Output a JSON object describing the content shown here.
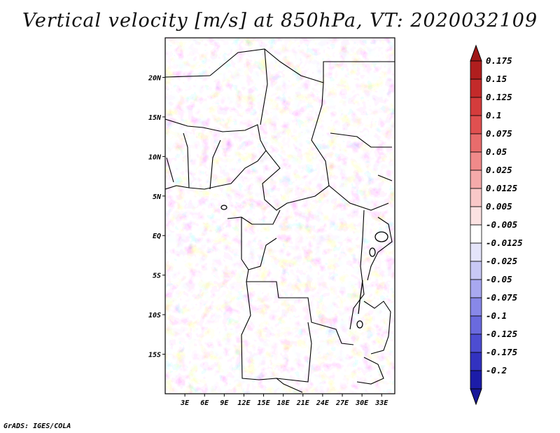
{
  "title": "Vertical velocity [m/s] at 850hPa, VT: 2020032109",
  "footer": "GrADS: IGES/COLA",
  "map": {
    "lon_range": [
      0,
      35
    ],
    "lat_range": [
      -20,
      25
    ],
    "lat_ticks": [
      {
        "value": 20,
        "label": "20N"
      },
      {
        "value": 15,
        "label": "15N"
      },
      {
        "value": 10,
        "label": "10N"
      },
      {
        "value": 5,
        "label": "5N"
      },
      {
        "value": 0,
        "label": "EQ"
      },
      {
        "value": -5,
        "label": "5S"
      },
      {
        "value": -10,
        "label": "10S"
      },
      {
        "value": -15,
        "label": "15S"
      }
    ],
    "lon_ticks": [
      {
        "value": 3,
        "label": "3E"
      },
      {
        "value": 6,
        "label": "6E"
      },
      {
        "value": 9,
        "label": "9E"
      },
      {
        "value": 12,
        "label": "12E"
      },
      {
        "value": 15,
        "label": "15E"
      },
      {
        "value": 18,
        "label": "18E"
      },
      {
        "value": 21,
        "label": "21E"
      },
      {
        "value": 24,
        "label": "24E"
      },
      {
        "value": 27,
        "label": "27E"
      },
      {
        "value": 30,
        "label": "30E"
      },
      {
        "value": 33,
        "label": "33E"
      }
    ]
  },
  "colorbar": {
    "levels": [
      {
        "label": "0.175",
        "color": "#b01e1e"
      },
      {
        "label": "0.15",
        "color": "#c32a2a"
      },
      {
        "label": "0.125",
        "color": "#d43c3c"
      },
      {
        "label": "0.1",
        "color": "#e05050"
      },
      {
        "label": "0.075",
        "color": "#e86c6c"
      },
      {
        "label": "0.05",
        "color": "#f08a8a"
      },
      {
        "label": "0.025",
        "color": "#f5aaaa"
      },
      {
        "label": "0.0125",
        "color": "#f9c8c8"
      },
      {
        "label": "0.005",
        "color": "#fce2e2"
      },
      {
        "label": "-0.005",
        "color": "#ffffff"
      },
      {
        "label": "-0.0125",
        "color": "#e4e4fa"
      },
      {
        "label": "-0.025",
        "color": "#c8c8f5"
      },
      {
        "label": "-0.05",
        "color": "#a8a8f0"
      },
      {
        "label": "-0.075",
        "color": "#8888e8"
      },
      {
        "label": "-0.1",
        "color": "#6a6ade"
      },
      {
        "label": "-0.125",
        "color": "#4d4dd2"
      },
      {
        "label": "-0.175",
        "color": "#3232c0"
      },
      {
        "label": "-0.2",
        "color": "#1c1ca8"
      }
    ],
    "top_arrow_color": "#a01818",
    "bottom_arrow_color": "#18189a"
  }
}
